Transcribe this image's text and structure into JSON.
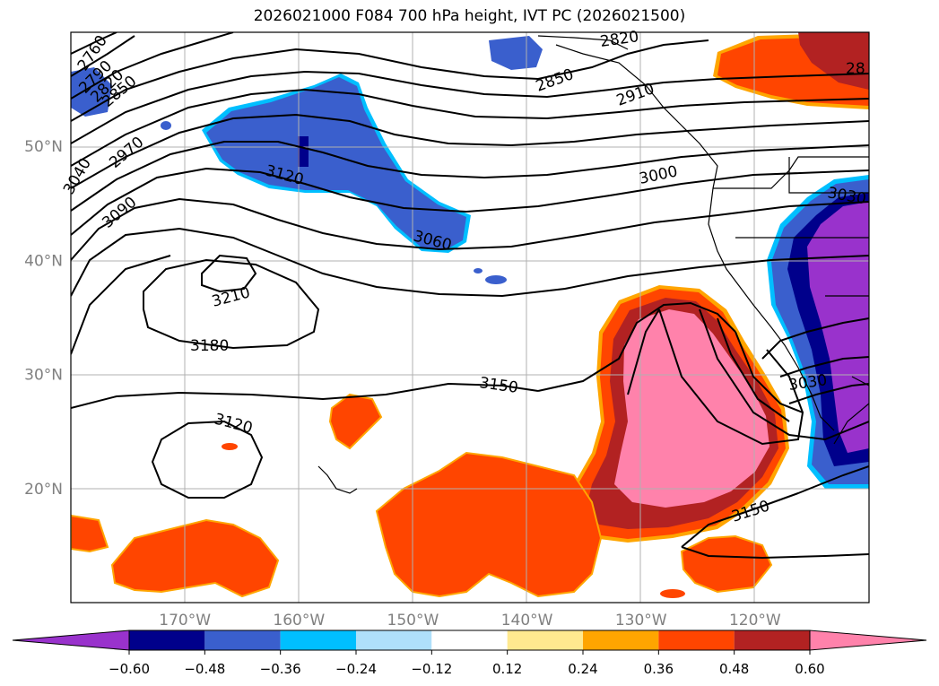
{
  "title": "2026021000 F084 700 hPa height, IVT PC (2026021500)",
  "map": {
    "lon_range": [
      -180,
      -110
    ],
    "lat_range": [
      10,
      60
    ],
    "lon_ticks": [
      {
        "value": -170,
        "label": "170°W"
      },
      {
        "value": -160,
        "label": "160°W"
      },
      {
        "value": -150,
        "label": "150°W"
      },
      {
        "value": -140,
        "label": "140°W"
      },
      {
        "value": -130,
        "label": "130°W"
      },
      {
        "value": -120,
        "label": "120°W"
      }
    ],
    "lat_ticks": [
      {
        "value": 20,
        "label": "20°N"
      },
      {
        "value": 30,
        "label": "30°N"
      },
      {
        "value": 40,
        "label": "40°N"
      },
      {
        "value": 50,
        "label": "50°N"
      }
    ],
    "grid": true,
    "tick_label_color": "#808080"
  },
  "height_contour_labels": [
    "2760",
    "2790",
    "2820",
    "2850",
    "2970",
    "3040",
    "3120",
    "3090",
    "3060",
    "3210",
    "3180",
    "3150",
    "3120",
    "2820",
    "2850",
    "2910",
    "3000",
    "3030",
    "3030",
    "3150",
    "28"
  ],
  "colorbar": {
    "ticks": [
      "−0.60",
      "−0.48",
      "−0.36",
      "−0.24",
      "−0.12",
      "0.12",
      "0.24",
      "0.36",
      "0.48",
      "0.60"
    ],
    "colors": [
      "#9932cc",
      "#00008b",
      "#3a5fcd",
      "#00bfff",
      "#afe0fa",
      "#ffffff",
      "#ffe98f",
      "#ffa500",
      "#ff4500",
      "#b22222",
      "#ff82ab"
    ],
    "extend": "both"
  }
}
